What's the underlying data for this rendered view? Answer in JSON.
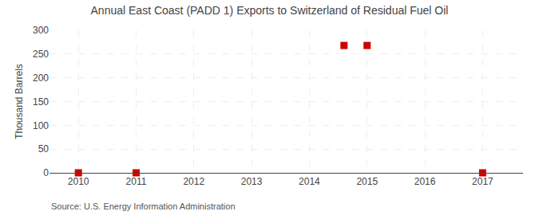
{
  "chart_data": {
    "type": "scatter",
    "title": "Annual East Coast (PADD 1) Exports to Switzerland of Residual Fuel Oil",
    "ylabel": "Thousand Barrels",
    "annotations": [
      "Source: U.S. Energy Information Administration"
    ],
    "x": [
      2010,
      2011,
      2014.6,
      2015,
      2017
    ],
    "values": [
      0,
      0,
      268,
      268,
      0
    ],
    "color": "#cc0000",
    "marker": "square",
    "xlim": [
      2009.5,
      2017.7
    ],
    "xticks": [
      2010,
      2011,
      2012,
      2013,
      2014,
      2015,
      2016,
      2017
    ],
    "ylim": [
      0,
      300
    ],
    "yticks": [
      0,
      50,
      100,
      150,
      200,
      250,
      300
    ],
    "grid": true
  }
}
